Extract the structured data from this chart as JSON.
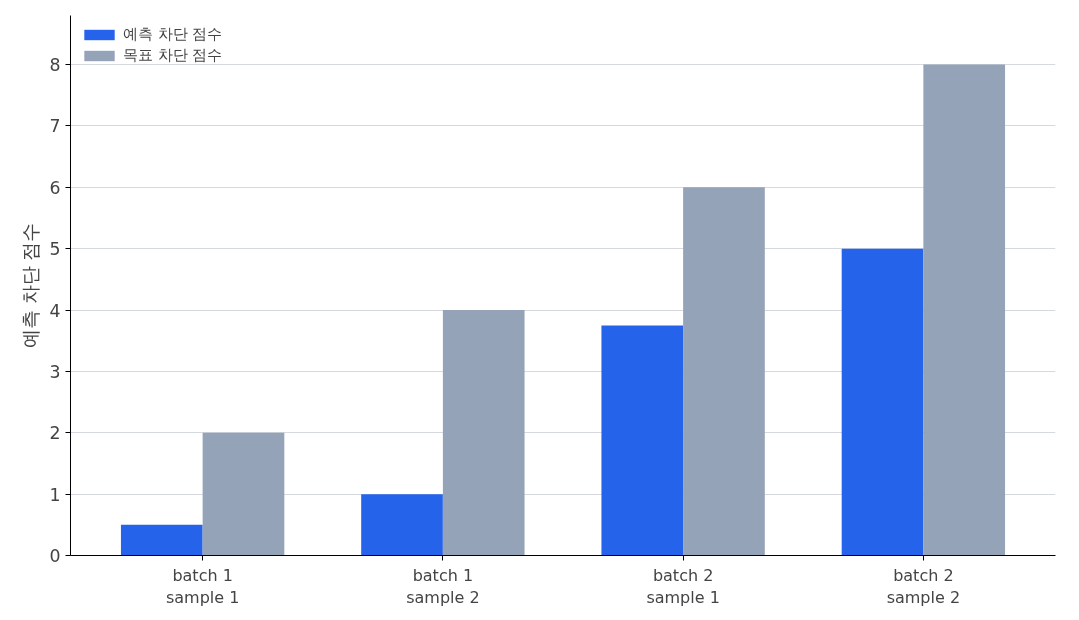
{
  "chart_data": {
    "type": "bar",
    "ylabel": "예측 차단 점수",
    "categories": [
      "batch 1\nsample 1",
      "batch 1\nsample 2",
      "batch 2\nsample 1",
      "batch 2\nsample 2"
    ],
    "series": [
      {
        "name": "예측 차단 점수",
        "color": "#2563eb",
        "values": [
          0.5,
          1,
          3.75,
          5
        ]
      },
      {
        "name": "목표 차단 점수",
        "color": "#94a3b8",
        "values": [
          2,
          4,
          6,
          8
        ]
      }
    ],
    "ylim": [
      0,
      8.8
    ],
    "yticks": [
      0,
      1,
      2,
      3,
      4,
      5,
      6,
      7,
      8
    ],
    "grid": "y",
    "legend": "top left"
  }
}
